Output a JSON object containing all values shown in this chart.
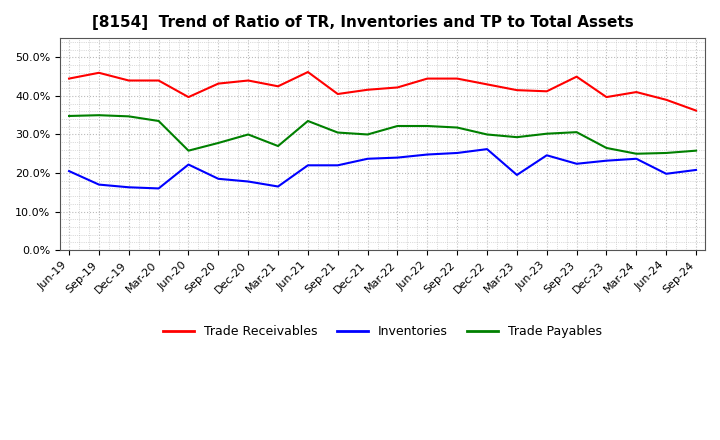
{
  "title": "[8154]  Trend of Ratio of TR, Inventories and TP to Total Assets",
  "labels": [
    "Jun-19",
    "Sep-19",
    "Dec-19",
    "Mar-20",
    "Jun-20",
    "Sep-20",
    "Dec-20",
    "Mar-21",
    "Jun-21",
    "Sep-21",
    "Dec-21",
    "Mar-22",
    "Jun-22",
    "Sep-22",
    "Dec-22",
    "Mar-23",
    "Jun-23",
    "Sep-23",
    "Dec-23",
    "Mar-24",
    "Jun-24",
    "Sep-24"
  ],
  "trade_receivables": [
    0.445,
    0.46,
    0.44,
    0.44,
    0.397,
    0.432,
    0.44,
    0.425,
    0.462,
    0.405,
    0.416,
    0.422,
    0.445,
    0.445,
    0.43,
    0.415,
    0.412,
    0.45,
    0.397,
    0.41,
    0.39,
    0.362
  ],
  "inventories": [
    0.205,
    0.17,
    0.163,
    0.16,
    0.222,
    0.185,
    0.178,
    0.165,
    0.22,
    0.22,
    0.237,
    0.24,
    0.248,
    0.252,
    0.262,
    0.195,
    0.246,
    0.224,
    0.232,
    0.237,
    0.198,
    0.208
  ],
  "trade_payables": [
    0.348,
    0.35,
    0.347,
    0.335,
    0.258,
    0.278,
    0.3,
    0.27,
    0.335,
    0.305,
    0.3,
    0.322,
    0.322,
    0.318,
    0.3,
    0.293,
    0.302,
    0.306,
    0.265,
    0.25,
    0.252,
    0.258
  ],
  "tr_color": "#ff0000",
  "inv_color": "#0000ff",
  "tp_color": "#008000",
  "ylim": [
    0.0,
    0.55
  ],
  "yticks": [
    0.0,
    0.1,
    0.2,
    0.3,
    0.4,
    0.5
  ],
  "legend_labels": [
    "Trade Receivables",
    "Inventories",
    "Trade Payables"
  ],
  "bg_color": "#ffffff",
  "grid_color": "#bbbbbb"
}
